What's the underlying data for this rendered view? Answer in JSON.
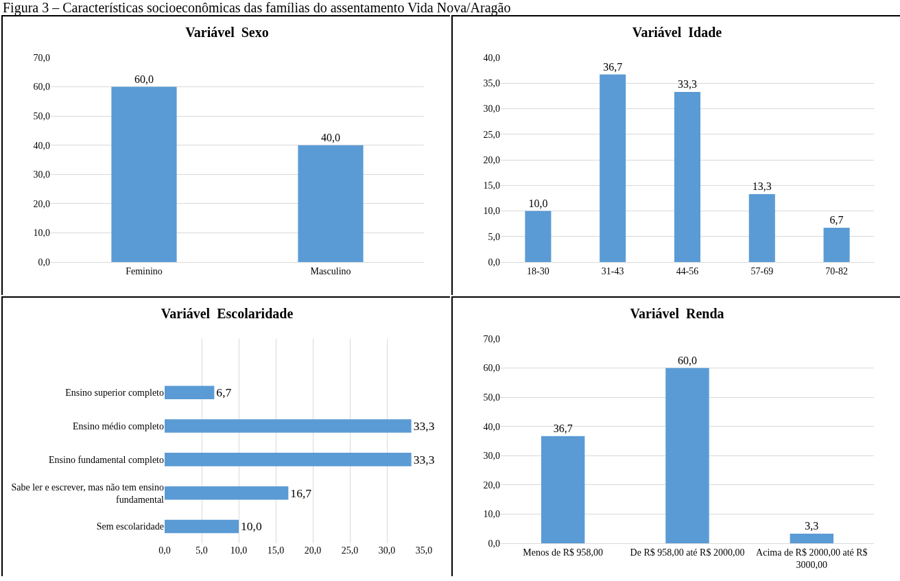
{
  "chart_data": [
    {
      "type": "bar",
      "title": "Variável  Sexo",
      "annotations": [
        "Figura 3 – Características socioeconômicas das famílias do assentamento Vida Nova/Aragão"
      ],
      "categories": [
        "Feminino",
        "Masculino"
      ],
      "values": [
        60,
        40
      ],
      "color": "#5b9bd5",
      "value_labels": [
        "60,0",
        "40,0"
      ],
      "ylim": [
        0,
        70
      ],
      "yticks": [
        {
          "value": 0,
          "label": "0,0"
        },
        {
          "value": 10,
          "label": "10,0"
        },
        {
          "value": 20,
          "label": "20,0"
        },
        {
          "value": 30,
          "label": "30,0"
        },
        {
          "value": 40,
          "label": "40,0"
        },
        {
          "value": 50,
          "label": "50,0"
        },
        {
          "value": 60,
          "label": "60,0"
        },
        {
          "value": 70,
          "label": "70,0"
        }
      ],
      "grid": "y"
    },
    {
      "type": "bar",
      "title": "Variável  Idade",
      "categories": [
        "18-30",
        "31-43",
        "44-56",
        "57-69",
        "70-82"
      ],
      "values": [
        10,
        36.7,
        33.3,
        13.3,
        6.7
      ],
      "color": "#5b9bd5",
      "value_labels": [
        "10,0",
        "36,7",
        "33,3",
        "13,3",
        "6,7"
      ],
      "ylim": [
        0,
        40
      ],
      "yticks": [
        {
          "value": 0,
          "label": "0,0"
        },
        {
          "value": 5,
          "label": "5,0"
        },
        {
          "value": 10,
          "label": "10,0"
        },
        {
          "value": 15,
          "label": "15,0"
        },
        {
          "value": 20,
          "label": "20,0"
        },
        {
          "value": 25,
          "label": "25,0"
        },
        {
          "value": 30,
          "label": "30,0"
        },
        {
          "value": 35,
          "label": "35,0"
        },
        {
          "value": 40,
          "label": "40,0"
        }
      ],
      "grid": "y"
    },
    {
      "type": "bar",
      "title": "Variável  Escolaridade",
      "orientation": "horizontal",
      "categories": [
        "Ensino superior completo",
        "Ensino médio completo",
        "Ensino fundamental completo",
        "Sabe ler e escrever, mas não tem ensino fundamental",
        "Sem escolaridade"
      ],
      "values": [
        6.7,
        33.3,
        33.3,
        16.7,
        10
      ],
      "color": "#5b9bd5",
      "value_labels": [
        "6,7",
        "33,3",
        "33,3",
        "16,7",
        "10,0"
      ],
      "xlim": [
        0,
        35
      ],
      "xticks": [
        {
          "value": 0,
          "label": "0,0"
        },
        {
          "value": 5,
          "label": "5,0"
        },
        {
          "value": 10,
          "label": "10,0"
        },
        {
          "value": 15,
          "label": "15,0"
        },
        {
          "value": 20,
          "label": "20,0"
        },
        {
          "value": 25,
          "label": "25,0"
        },
        {
          "value": 30,
          "label": "30,0"
        },
        {
          "value": 35,
          "label": "35,0"
        }
      ],
      "grid": "x"
    },
    {
      "type": "bar",
      "title": "Variável  Renda",
      "categories": [
        "Menos de R$ 958,00",
        "De R$ 958,00 até R$ 2000,00",
        "Acima de R$ 2000,00 até R$ 3000,00"
      ],
      "values": [
        36.7,
        60,
        3.3
      ],
      "color": "#5b9bd5",
      "value_labels": [
        "36,7",
        "60,0",
        "3,3"
      ],
      "ylim": [
        0,
        70
      ],
      "yticks": [
        {
          "value": 0,
          "label": "0,0"
        },
        {
          "value": 10,
          "label": "10,0"
        },
        {
          "value": 20,
          "label": "20,0"
        },
        {
          "value": 30,
          "label": "30,0"
        },
        {
          "value": 40,
          "label": "40,0"
        },
        {
          "value": 50,
          "label": "50,0"
        },
        {
          "value": 60,
          "label": "60,0"
        },
        {
          "value": 70,
          "label": "70,0"
        }
      ],
      "grid": "y"
    }
  ]
}
